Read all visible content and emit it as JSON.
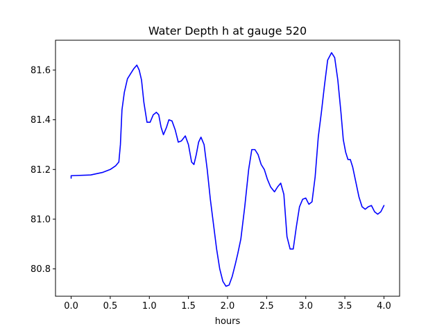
{
  "chart_data": {
    "type": "line",
    "title": "Water Depth h at gauge 520",
    "xlabel": "hours",
    "ylabel": "",
    "xlim": [
      -0.2,
      4.2
    ],
    "ylim": [
      80.69,
      81.72
    ],
    "x_ticks": [
      0.0,
      0.5,
      1.0,
      1.5,
      2.0,
      2.5,
      3.0,
      3.5,
      4.0
    ],
    "x_tick_labels": [
      "0.0",
      "0.5",
      "1.0",
      "1.5",
      "2.0",
      "2.5",
      "3.0",
      "3.5",
      "4.0"
    ],
    "y_ticks": [
      80.8,
      81.0,
      81.2,
      81.4,
      81.6
    ],
    "y_tick_labels": [
      "80.8",
      "81.0",
      "81.2",
      "81.4",
      "81.6"
    ],
    "grid": false,
    "line_color": "#0000ff",
    "series": [
      {
        "x": [
          0.0,
          0.0,
          0.25,
          0.4,
          0.5,
          0.57,
          0.61,
          0.63,
          0.65,
          0.68,
          0.72,
          0.76,
          0.8,
          0.84,
          0.87,
          0.9,
          0.93,
          0.97,
          1.01,
          1.05,
          1.09,
          1.12,
          1.15,
          1.18,
          1.22,
          1.25,
          1.29,
          1.33,
          1.37,
          1.41,
          1.46,
          1.5,
          1.54,
          1.57,
          1.6,
          1.63,
          1.66,
          1.7,
          1.74,
          1.78,
          1.82,
          1.86,
          1.9,
          1.94,
          1.98,
          2.02,
          2.06,
          2.1,
          2.13,
          2.17,
          2.22,
          2.27,
          2.31,
          2.35,
          2.39,
          2.43,
          2.47,
          2.51,
          2.55,
          2.6,
          2.64,
          2.68,
          2.72,
          2.76,
          2.8,
          2.84,
          2.88,
          2.92,
          2.96,
          3.0,
          3.04,
          3.08,
          3.12,
          3.16,
          3.2,
          3.24,
          3.28,
          3.33,
          3.37,
          3.41,
          3.45,
          3.48,
          3.51,
          3.54,
          3.57,
          3.6,
          3.64,
          3.68,
          3.72,
          3.76,
          3.8,
          3.84,
          3.88,
          3.92,
          3.96,
          4.0
        ],
        "y": [
          81.165,
          81.175,
          81.178,
          81.188,
          81.2,
          81.215,
          81.23,
          81.3,
          81.44,
          81.51,
          81.565,
          81.585,
          81.605,
          81.62,
          81.6,
          81.56,
          81.47,
          81.39,
          81.39,
          81.42,
          81.43,
          81.42,
          81.37,
          81.34,
          81.37,
          81.4,
          81.395,
          81.36,
          81.31,
          81.315,
          81.335,
          81.3,
          81.23,
          81.22,
          81.26,
          81.31,
          81.33,
          81.3,
          81.2,
          81.08,
          80.98,
          80.88,
          80.8,
          80.75,
          80.73,
          80.735,
          80.77,
          80.82,
          80.86,
          80.92,
          81.05,
          81.2,
          81.28,
          81.28,
          81.26,
          81.22,
          81.2,
          81.16,
          81.13,
          81.11,
          81.13,
          81.145,
          81.1,
          80.93,
          80.88,
          80.88,
          80.97,
          81.05,
          81.08,
          81.085,
          81.06,
          81.07,
          81.17,
          81.33,
          81.43,
          81.54,
          81.64,
          81.67,
          81.65,
          81.56,
          81.43,
          81.32,
          81.27,
          81.24,
          81.24,
          81.21,
          81.15,
          81.09,
          81.05,
          81.04,
          81.05,
          81.055,
          81.03,
          81.02,
          81.03,
          81.055
        ]
      }
    ]
  }
}
